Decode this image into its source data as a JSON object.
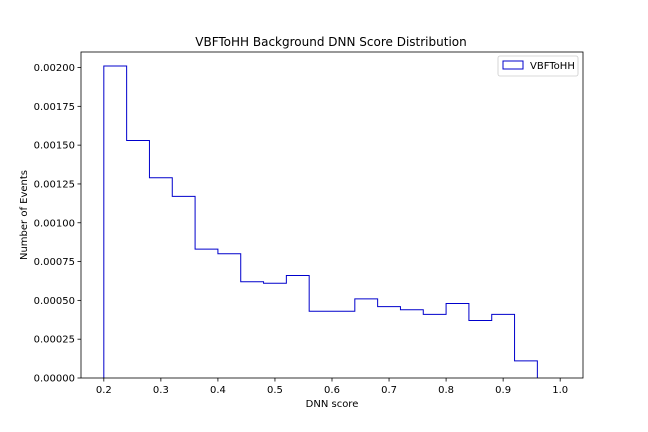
{
  "chart_data": {
    "type": "histogram-step",
    "title": "VBFToHH Background DNN Score Distribution",
    "xlabel": "DNN score",
    "ylabel": "Number of Events",
    "xlim": [
      0.16,
      1.04
    ],
    "ylim": [
      0.0,
      0.0021
    ],
    "x_ticks": [
      0.2,
      0.3,
      0.4,
      0.5,
      0.6,
      0.7,
      0.8,
      0.9,
      1.0
    ],
    "x_tick_labels": [
      "0.2",
      "0.3",
      "0.4",
      "0.5",
      "0.6",
      "0.7",
      "0.8",
      "0.9",
      "1.0"
    ],
    "y_ticks": [
      0.0,
      0.00025,
      0.0005,
      0.00075,
      0.001,
      0.00125,
      0.0015,
      0.00175,
      0.002
    ],
    "y_tick_labels": [
      "0.00000",
      "0.00025",
      "0.00050",
      "0.00075",
      "0.00100",
      "0.00125",
      "0.00150",
      "0.00175",
      "0.00200"
    ],
    "legend_position": "top-right",
    "grid": false,
    "series": [
      {
        "name": "VBFToHH",
        "color": "#0000cc",
        "bin_edges": [
          0.2,
          0.24,
          0.28,
          0.32,
          0.36,
          0.4,
          0.44,
          0.48,
          0.52,
          0.56,
          0.6,
          0.64,
          0.68,
          0.72,
          0.76,
          0.8,
          0.84,
          0.88,
          0.92,
          0.96
        ],
        "values": [
          0.00201,
          0.00153,
          0.00129,
          0.00117,
          0.00083,
          0.0008,
          0.00062,
          0.00061,
          0.00066,
          0.00043,
          0.00043,
          0.00051,
          0.00046,
          0.00044,
          0.00041,
          0.00048,
          0.00037,
          0.00041,
          0.00011
        ]
      }
    ]
  }
}
